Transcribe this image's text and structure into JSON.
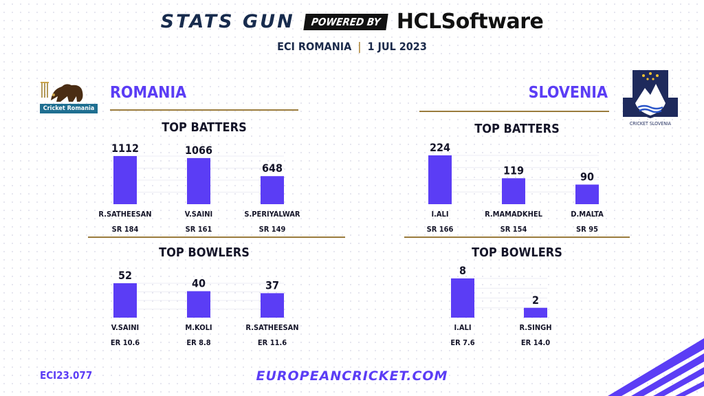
{
  "header": {
    "brand_left": "STATS GUN",
    "powered_by": "POWERED BY",
    "brand_right": "HCLSoftware",
    "match_event": "ECI ROMANIA",
    "match_separator": "|",
    "match_date": "1 JUL 2023"
  },
  "teams": [
    {
      "name": "ROMANIA",
      "logo_text": "Cricket Romania",
      "batters_title": "TOP BATTERS",
      "bowlers_title": "TOP BOWLERS"
    },
    {
      "name": "SLOVENIA",
      "logo_text": "CRICKET SLOVENIA",
      "batters_title": "TOP BATTERS",
      "bowlers_title": "TOP BOWLERS"
    }
  ],
  "chart_data": [
    {
      "type": "bar",
      "team": "ROMANIA",
      "title": "TOP BATTERS",
      "categories": [
        "R.SATHEESAN",
        "V.SAINI",
        "S.PERIYALWAR"
      ],
      "values": [
        1112,
        1066,
        648
      ],
      "sublabels": [
        "SR 184",
        "SR 161",
        "SR 149"
      ],
      "ylim": [
        0,
        1112
      ],
      "grid": true,
      "bar_color": "#5b3df5"
    },
    {
      "type": "bar",
      "team": "ROMANIA",
      "title": "TOP BOWLERS",
      "categories": [
        "V.SAINI",
        "M.KOLI",
        "R.SATHEESAN"
      ],
      "values": [
        52,
        40,
        37
      ],
      "sublabels": [
        "ER 10.6",
        "ER 8.8",
        "ER 11.6"
      ],
      "ylim": [
        0,
        52
      ],
      "grid": true,
      "bar_color": "#5b3df5"
    },
    {
      "type": "bar",
      "team": "SLOVENIA",
      "title": "TOP BATTERS",
      "categories": [
        "I.ALI",
        "R.MAMADKHEL",
        "D.MALTA"
      ],
      "values": [
        224,
        119,
        90
      ],
      "sublabels": [
        "SR 166",
        "SR 154",
        "SR 95"
      ],
      "ylim": [
        0,
        224
      ],
      "grid": true,
      "bar_color": "#5b3df5"
    },
    {
      "type": "bar",
      "team": "SLOVENIA",
      "title": "TOP BOWLERS",
      "categories": [
        "I.ALI",
        "R.SINGH"
      ],
      "values": [
        8,
        2
      ],
      "sublabels": [
        "ER 7.6",
        "ER 14.0"
      ],
      "ylim": [
        0,
        8
      ],
      "grid": true,
      "bar_color": "#5b3df5"
    }
  ],
  "footer": {
    "code": "ECI23.077",
    "url": "EUROPEANCRICKET.COM"
  },
  "colors": {
    "accent": "#5b3df5",
    "gold": "#9a7b3c",
    "navy": "#172b4d"
  }
}
